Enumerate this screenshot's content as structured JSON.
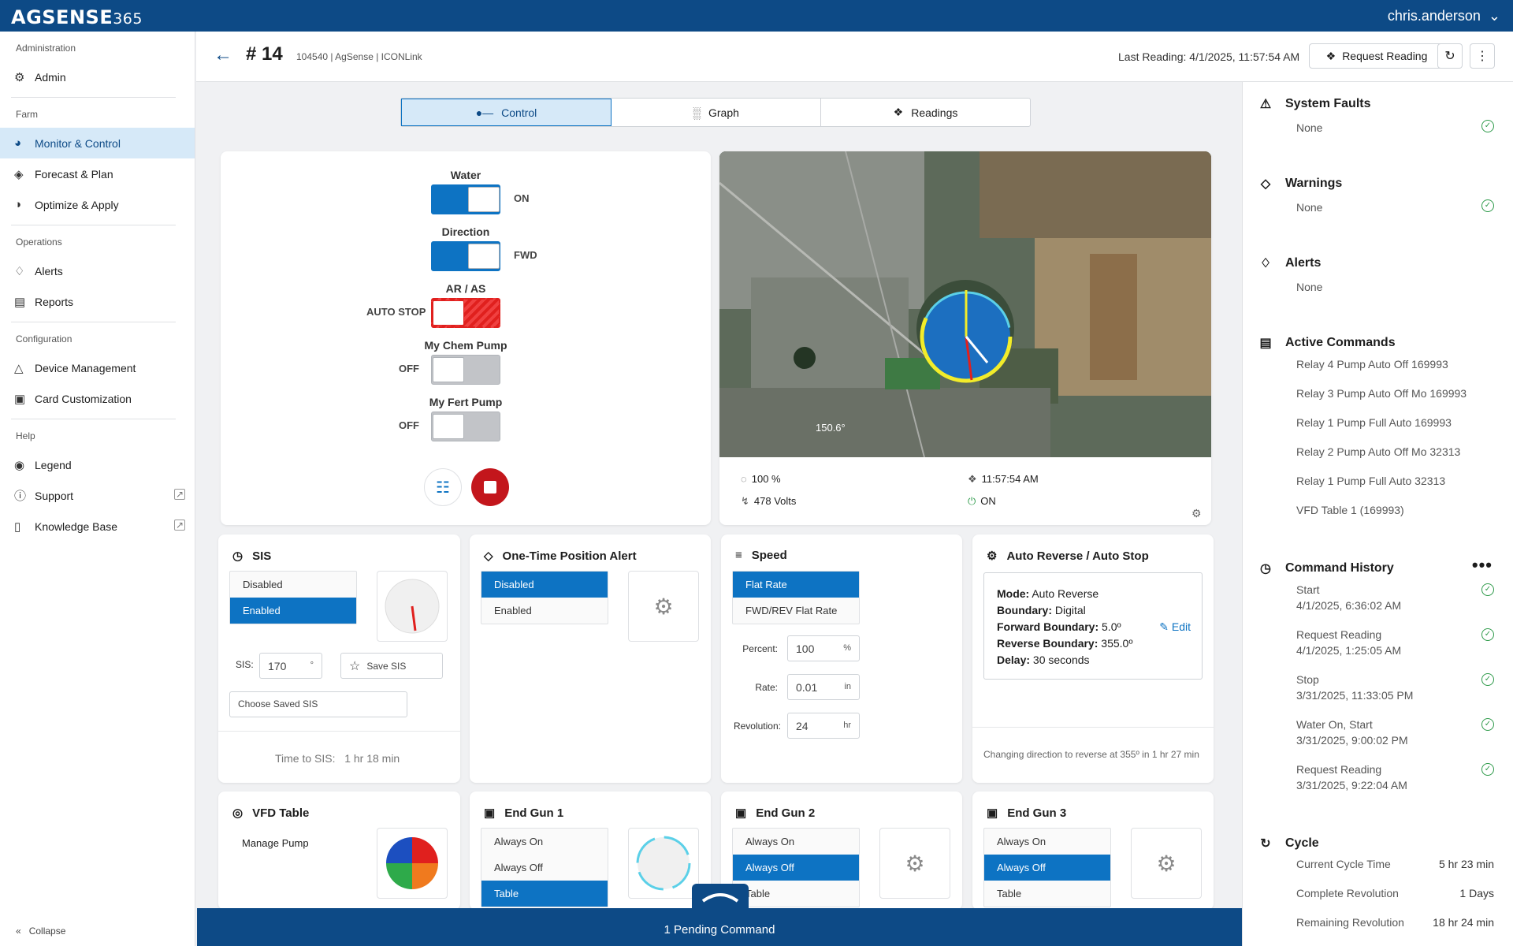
{
  "app": {
    "logo": "AGSENSE",
    "logo_suffix": "365",
    "user": "chris.anderson"
  },
  "sidebar": {
    "sections": [
      {
        "label": "Administration",
        "items": [
          {
            "label": "Admin",
            "icon": "admin-gear-icon"
          }
        ]
      },
      {
        "label": "Farm",
        "items": [
          {
            "label": "Monitor & Control",
            "icon": "monitor-icon",
            "active": true
          },
          {
            "label": "Forecast & Plan",
            "icon": "forecast-icon"
          },
          {
            "label": "Optimize & Apply",
            "icon": "optimize-icon"
          }
        ]
      },
      {
        "label": "Operations",
        "items": [
          {
            "label": "Alerts",
            "icon": "bell-icon"
          },
          {
            "label": "Reports",
            "icon": "reports-icon"
          }
        ]
      },
      {
        "label": "Configuration",
        "items": [
          {
            "label": "Device Management",
            "icon": "device-icon"
          },
          {
            "label": "Card Customization",
            "icon": "card-icon"
          }
        ]
      },
      {
        "label": "Help",
        "items": [
          {
            "label": "Legend",
            "icon": "palette-icon"
          },
          {
            "label": "Support",
            "icon": "help-icon",
            "external": true
          },
          {
            "label": "Knowledge Base",
            "icon": "book-icon",
            "external": true
          }
        ]
      }
    ],
    "collapse": "Collapse"
  },
  "header": {
    "title": "# 14",
    "subtitle": "104540 | AgSense | ICONLink",
    "last_reading": "Last Reading: 4/1/2025, 11:57:54 AM",
    "request_reading": "Request Reading"
  },
  "tabs": [
    {
      "label": "Control",
      "icon": "toggle-icon",
      "active": true
    },
    {
      "label": "Graph",
      "icon": "bar-chart-icon"
    },
    {
      "label": "Readings",
      "icon": "antenna-icon"
    }
  ],
  "control": {
    "water": {
      "label": "Water",
      "state": "ON"
    },
    "direction": {
      "label": "Direction",
      "state": "FWD"
    },
    "ar_as": {
      "label": "AR / AS",
      "state": "AUTO STOP"
    },
    "chem": {
      "label": "My Chem Pump",
      "state": "OFF"
    },
    "fert": {
      "label": "My Fert Pump",
      "state": "OFF"
    }
  },
  "map": {
    "angle_label": "150.6°",
    "pressure": "100 %",
    "voltage": "478 Volts",
    "time": "11:57:54 AM",
    "power": "ON"
  },
  "sis": {
    "title": "SIS",
    "options": [
      "Disabled",
      "Enabled"
    ],
    "selected": 1,
    "sis_label": "SIS:",
    "sis_value": "170",
    "sis_unit": "°",
    "save": "Save SIS",
    "choose": "Choose Saved SIS",
    "time_label": "Time to SIS:",
    "time_value": "1 hr 18 min"
  },
  "alert": {
    "title": "One-Time Position Alert",
    "options": [
      "Disabled",
      "Enabled"
    ],
    "selected": 0
  },
  "speed": {
    "title": "Speed",
    "options": [
      "Flat Rate",
      "FWD/REV Flat Rate"
    ],
    "selected": 0,
    "fields": [
      {
        "label": "Percent:",
        "value": "100",
        "unit": "%"
      },
      {
        "label": "Rate:",
        "value": "0.01",
        "unit": "in"
      },
      {
        "label": "Revolution:",
        "value": "24",
        "unit": "hr"
      }
    ]
  },
  "auto_reverse": {
    "title": "Auto Reverse / Auto Stop",
    "lines": [
      {
        "k": "Mode:",
        "v": " Auto Reverse"
      },
      {
        "k": "Boundary:",
        "v": " Digital"
      },
      {
        "k": "Forward Boundary:",
        "v": " 5.0º"
      },
      {
        "k": "Reverse Boundary:",
        "v": " 355.0º"
      },
      {
        "k": "Delay:",
        "v": " 30 seconds"
      }
    ],
    "edit": "Edit",
    "note": "Changing direction to reverse at 355º in 1 hr 27 min"
  },
  "vfd": {
    "title": "VFD Table",
    "manage": "Manage Pump"
  },
  "endgun1": {
    "title": "End Gun 1",
    "options": [
      "Always On",
      "Always Off",
      "Table"
    ],
    "selected": 2
  },
  "endgun2": {
    "title": "End Gun 2",
    "options": [
      "Always On",
      "Always Off",
      "Table"
    ],
    "selected": 1
  },
  "endgun3": {
    "title": "End Gun 3",
    "options": [
      "Always On",
      "Always Off",
      "Table"
    ],
    "selected": 1
  },
  "pending": "1 Pending Command",
  "right": {
    "faults": {
      "title": "System Faults",
      "value": "None"
    },
    "warnings": {
      "title": "Warnings",
      "value": "None"
    },
    "alerts": {
      "title": "Alerts",
      "value": "None"
    },
    "active": {
      "title": "Active Commands",
      "items": [
        "Relay 4 Pump Auto Off 169993",
        "Relay 3 Pump Auto Off Mo 169993",
        "Relay 1 Pump Full Auto 169993",
        "Relay 2 Pump Auto Off Mo 32313",
        "Relay 1 Pump Full Auto 32313",
        "VFD Table 1 (169993)"
      ]
    },
    "history": {
      "title": "Command History",
      "items": [
        {
          "name": "Start",
          "time": "4/1/2025, 6:36:02 AM"
        },
        {
          "name": "Request Reading",
          "time": "4/1/2025, 1:25:05 AM"
        },
        {
          "name": "Stop",
          "time": "3/31/2025, 11:33:05 PM"
        },
        {
          "name": "Water On, Start",
          "time": "3/31/2025, 9:00:02 PM"
        },
        {
          "name": "Request Reading",
          "time": "3/31/2025, 9:22:04 AM"
        }
      ]
    },
    "cycle": {
      "title": "Cycle",
      "rows": [
        {
          "k": "Current Cycle Time",
          "v": "5 hr 23 min"
        },
        {
          "k": "Complete Revolution",
          "v": "1 Days"
        },
        {
          "k": "Remaining Revolution",
          "v": "18 hr 24 min"
        }
      ]
    }
  }
}
